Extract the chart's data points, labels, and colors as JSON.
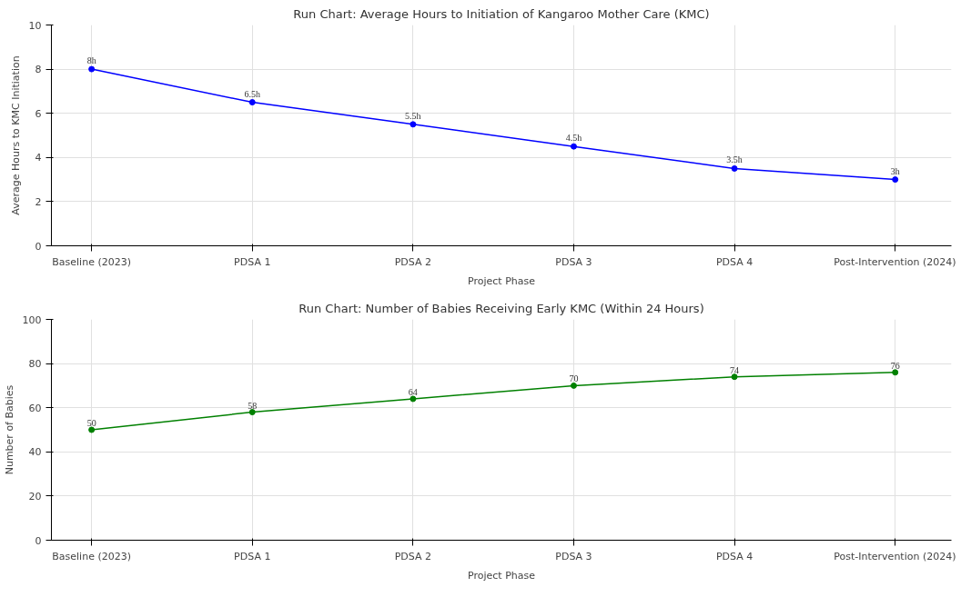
{
  "chart_data": [
    {
      "type": "line",
      "title": "Run Chart: Average Hours to Initiation of Kangaroo Mother Care (KMC)",
      "xlabel": "Project Phase",
      "ylabel": "Average Hours to KMC Initiation",
      "categories": [
        "Baseline (2023)",
        "PDSA 1",
        "PDSA 2",
        "PDSA 3",
        "PDSA 4",
        "Post-Intervention (2024)"
      ],
      "series": [
        {
          "color": "#0000ff",
          "values": [
            8,
            6.5,
            5.5,
            4.5,
            3.5,
            3
          ],
          "value_labels": [
            "8h",
            "6.5h",
            "5.5h",
            "4.5h",
            "3.5h",
            "3h"
          ]
        }
      ],
      "ylim": [
        0,
        10
      ],
      "yticks": [
        0,
        2,
        4,
        6,
        8,
        10
      ],
      "grid": true,
      "marker": "circle",
      "line_style": "solid"
    },
    {
      "type": "line",
      "title": "Run Chart: Number of Babies Receiving Early KMC (Within 24 Hours)",
      "xlabel": "Project Phase",
      "ylabel": "Number of Babies",
      "categories": [
        "Baseline (2023)",
        "PDSA 1",
        "PDSA 2",
        "PDSA 3",
        "PDSA 4",
        "Post-Intervention (2024)"
      ],
      "series": [
        {
          "color": "#008000",
          "values": [
            50,
            58,
            64,
            70,
            74,
            76
          ]
        }
      ],
      "ylim": [
        0,
        100
      ],
      "yticks": [
        0,
        20,
        40,
        60,
        80,
        100
      ],
      "grid": true,
      "marker": "circle",
      "line_style": "solid",
      "data_labels": true
    }
  ]
}
